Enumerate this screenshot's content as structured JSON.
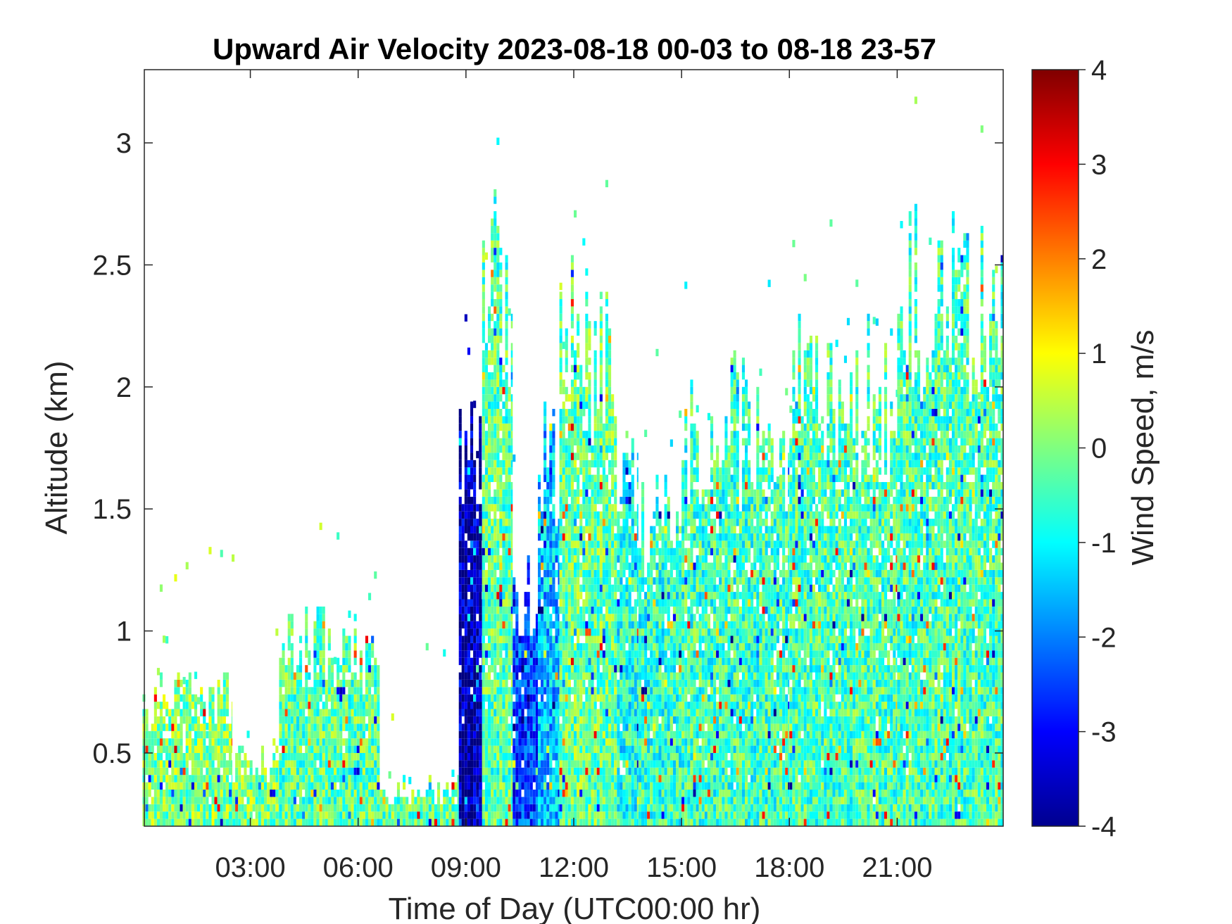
{
  "chart_data": {
    "type": "heatmap",
    "title": "Upward Air Velocity 2023-08-18 00-03 to 08-18 23-57",
    "xlabel": "Time of Day (UTC00:00 hr)",
    "ylabel": "Altitude (km)",
    "colorbar_label": "Wind Speed, m/s",
    "colormap": "jet",
    "xlim_hours": [
      0.05,
      23.95
    ],
    "ylim_km": [
      0.2,
      3.3
    ],
    "clim": [
      -4,
      4
    ],
    "x_ticks": [
      {
        "value": 3,
        "label": "03:00"
      },
      {
        "value": 6,
        "label": "06:00"
      },
      {
        "value": 9,
        "label": "09:00"
      },
      {
        "value": 12,
        "label": "12:00"
      },
      {
        "value": 15,
        "label": "15:00"
      },
      {
        "value": 18,
        "label": "18:00"
      },
      {
        "value": 21,
        "label": "21:00"
      }
    ],
    "y_ticks": [
      {
        "value": 0.5,
        "label": "0.5"
      },
      {
        "value": 1,
        "label": "1"
      },
      {
        "value": 1.5,
        "label": "1.5"
      },
      {
        "value": 2,
        "label": "2"
      },
      {
        "value": 2.5,
        "label": "2.5"
      },
      {
        "value": 3,
        "label": "3"
      }
    ],
    "colorbar_ticks": [
      {
        "value": -4,
        "label": "-4"
      },
      {
        "value": -3,
        "label": "-3"
      },
      {
        "value": -2,
        "label": "-2"
      },
      {
        "value": -1,
        "label": "-1"
      },
      {
        "value": 0,
        "label": "0"
      },
      {
        "value": 1,
        "label": "1"
      },
      {
        "value": 2,
        "label": "2"
      },
      {
        "value": 3,
        "label": "3"
      },
      {
        "value": 4,
        "label": "4"
      }
    ],
    "grid": false,
    "data_coverage": [
      {
        "start_hour": 0.0,
        "end_hour": 2.5,
        "top_km": 0.75,
        "mean_velocity": 0.0
      },
      {
        "start_hour": 2.5,
        "end_hour": 3.8,
        "top_km": 0.5,
        "mean_velocity": 0.0
      },
      {
        "start_hour": 3.8,
        "end_hour": 6.6,
        "top_km": 1.0,
        "mean_velocity": -0.3
      },
      {
        "start_hour": 6.6,
        "end_hour": 8.8,
        "top_km": 0.35,
        "mean_velocity": -0.2
      },
      {
        "start_hour": 8.8,
        "end_hour": 9.45,
        "top_km": 1.8,
        "mean_velocity": -3.6
      },
      {
        "start_hour": 9.45,
        "end_hour": 10.3,
        "top_km": 2.6,
        "mean_velocity": -0.3
      },
      {
        "start_hour": 10.3,
        "end_hour": 11.0,
        "top_km": 1.2,
        "mean_velocity": -2.5
      },
      {
        "start_hour": 11.0,
        "end_hour": 11.6,
        "top_km": 1.8,
        "mean_velocity": -1.5
      },
      {
        "start_hour": 11.6,
        "end_hour": 13.2,
        "top_km": 2.3,
        "mean_velocity": -0.2
      },
      {
        "start_hour": 13.2,
        "end_hour": 13.8,
        "top_km": 1.7,
        "mean_velocity": -0.8
      },
      {
        "start_hour": 13.8,
        "end_hour": 15.0,
        "top_km": 1.5,
        "mean_velocity": -0.6
      },
      {
        "start_hour": 15.0,
        "end_hour": 18.0,
        "top_km": 1.95,
        "mean_velocity": -0.5
      },
      {
        "start_hour": 18.0,
        "end_hour": 21.0,
        "top_km": 2.1,
        "mean_velocity": -0.4
      },
      {
        "start_hour": 21.0,
        "end_hour": 23.95,
        "top_km": 2.5,
        "mean_velocity": -0.4
      }
    ]
  }
}
